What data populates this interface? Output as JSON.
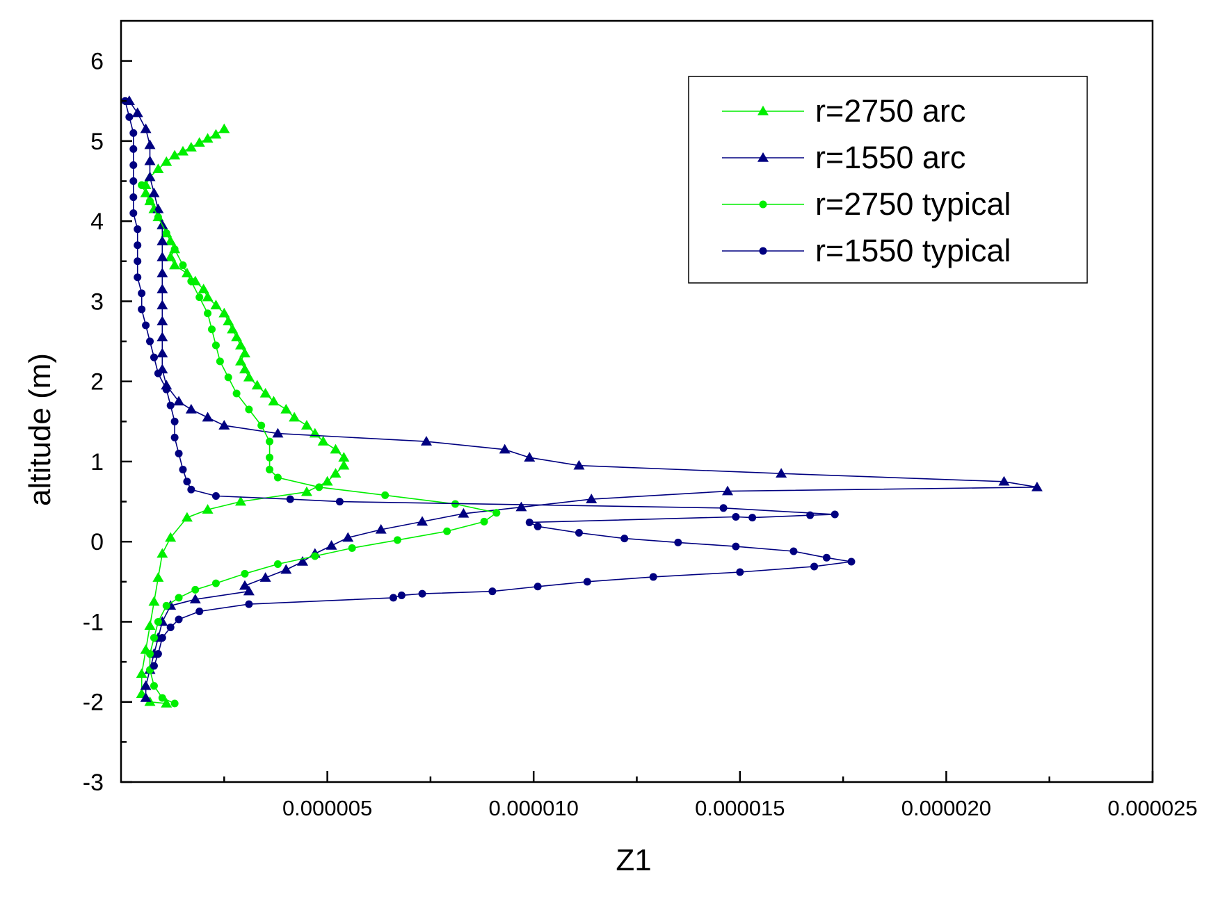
{
  "chart_data": {
    "type": "line",
    "title": "",
    "xlabel": "Z1",
    "ylabel": "altitude (m)",
    "xlim": [
      0.0,
      2.5e-05
    ],
    "ylim": [
      -3,
      6.5
    ],
    "x_ticks": [
      5e-06,
      1e-05,
      1.5e-05,
      2e-05,
      2.5e-05
    ],
    "x_tick_labels": [
      "0.000005",
      "0.000010",
      "0.000015",
      "0.000020",
      "0.000025"
    ],
    "y_ticks": [
      -3,
      -2,
      -1,
      0,
      1,
      2,
      3,
      4,
      5,
      6
    ],
    "y_tick_labels": [
      "-3",
      "-2",
      "-1",
      "0",
      "1",
      "2",
      "3",
      "4",
      "5",
      "6"
    ],
    "grid": false,
    "legend_position": "top-right",
    "series": [
      {
        "name": "r=2750 arc",
        "color": "#00ee00",
        "marker": "triangle",
        "points": [
          [
            2.5e-06,
            5.15
          ],
          [
            2.3e-06,
            5.08
          ],
          [
            2.1e-06,
            5.03
          ],
          [
            1.9e-06,
            4.98
          ],
          [
            1.7e-06,
            4.92
          ],
          [
            1.5e-06,
            4.87
          ],
          [
            1.3e-06,
            4.82
          ],
          [
            1.1e-06,
            4.74
          ],
          [
            9e-07,
            4.65
          ],
          [
            7e-07,
            4.55
          ],
          [
            6e-07,
            4.45
          ],
          [
            6e-07,
            4.35
          ],
          [
            7e-07,
            4.25
          ],
          [
            8e-07,
            4.15
          ],
          [
            9e-07,
            4.05
          ],
          [
            1e-06,
            3.95
          ],
          [
            1.1e-06,
            3.85
          ],
          [
            1.2e-06,
            3.75
          ],
          [
            1.3e-06,
            3.65
          ],
          [
            1.2e-06,
            3.55
          ],
          [
            1.3e-06,
            3.45
          ],
          [
            1.6e-06,
            3.35
          ],
          [
            1.8e-06,
            3.25
          ],
          [
            2e-06,
            3.15
          ],
          [
            2.1e-06,
            3.05
          ],
          [
            2.3e-06,
            2.95
          ],
          [
            2.5e-06,
            2.85
          ],
          [
            2.6e-06,
            2.75
          ],
          [
            2.7e-06,
            2.65
          ],
          [
            2.8e-06,
            2.55
          ],
          [
            2.9e-06,
            2.45
          ],
          [
            3e-06,
            2.35
          ],
          [
            2.9e-06,
            2.25
          ],
          [
            3e-06,
            2.15
          ],
          [
            3.1e-06,
            2.05
          ],
          [
            3.3e-06,
            1.95
          ],
          [
            3.5e-06,
            1.85
          ],
          [
            3.7e-06,
            1.75
          ],
          [
            4e-06,
            1.65
          ],
          [
            4.2e-06,
            1.55
          ],
          [
            4.5e-06,
            1.45
          ],
          [
            4.7e-06,
            1.35
          ],
          [
            4.9e-06,
            1.25
          ],
          [
            5.2e-06,
            1.15
          ],
          [
            5.4e-06,
            1.05
          ],
          [
            5.4e-06,
            0.95
          ],
          [
            5.2e-06,
            0.85
          ],
          [
            5e-06,
            0.75
          ],
          [
            4.5e-06,
            0.62
          ],
          [
            2.9e-06,
            0.5
          ],
          [
            2.1e-06,
            0.4
          ],
          [
            1.6e-06,
            0.3
          ],
          [
            1.2e-06,
            0.05
          ],
          [
            1e-06,
            -0.15
          ],
          [
            9e-07,
            -0.45
          ],
          [
            8e-07,
            -0.75
          ],
          [
            7e-07,
            -1.05
          ],
          [
            6e-07,
            -1.35
          ],
          [
            5e-07,
            -1.65
          ],
          [
            5e-07,
            -1.9
          ],
          [
            7e-07,
            -2.0
          ],
          [
            1.1e-06,
            -2.02
          ]
        ]
      },
      {
        "name": "r=1550 arc",
        "color": "#000080",
        "marker": "triangle",
        "points": [
          [
            2e-07,
            5.5
          ],
          [
            4e-07,
            5.35
          ],
          [
            6e-07,
            5.15
          ],
          [
            7e-07,
            4.95
          ],
          [
            7e-07,
            4.75
          ],
          [
            7e-07,
            4.55
          ],
          [
            8e-07,
            4.35
          ],
          [
            9e-07,
            4.15
          ],
          [
            1e-06,
            3.95
          ],
          [
            1e-06,
            3.75
          ],
          [
            1e-06,
            3.55
          ],
          [
            1e-06,
            3.35
          ],
          [
            1e-06,
            3.15
          ],
          [
            1e-06,
            2.95
          ],
          [
            1e-06,
            2.75
          ],
          [
            1e-06,
            2.55
          ],
          [
            1e-06,
            2.35
          ],
          [
            1e-06,
            2.15
          ],
          [
            1.1e-06,
            1.95
          ],
          [
            1.4e-06,
            1.75
          ],
          [
            1.7e-06,
            1.65
          ],
          [
            2.1e-06,
            1.55
          ],
          [
            2.5e-06,
            1.45
          ],
          [
            3.8e-06,
            1.35
          ],
          [
            7.4e-06,
            1.25
          ],
          [
            9.3e-06,
            1.15
          ],
          [
            9.9e-06,
            1.05
          ],
          [
            1.11e-05,
            0.95
          ],
          [
            1.6e-05,
            0.85
          ],
          [
            2.14e-05,
            0.75
          ],
          [
            2.22e-05,
            0.68
          ],
          [
            1.47e-05,
            0.63
          ],
          [
            1.14e-05,
            0.53
          ],
          [
            9.7e-06,
            0.43
          ],
          [
            8.3e-06,
            0.35
          ],
          [
            7.3e-06,
            0.25
          ],
          [
            6.3e-06,
            0.15
          ],
          [
            5.5e-06,
            0.05
          ],
          [
            5.1e-06,
            -0.05
          ],
          [
            4.7e-06,
            -0.15
          ],
          [
            4.4e-06,
            -0.25
          ],
          [
            4e-06,
            -0.35
          ],
          [
            3.5e-06,
            -0.45
          ],
          [
            3e-06,
            -0.55
          ],
          [
            3.1e-06,
            -0.62
          ],
          [
            1.8e-06,
            -0.72
          ],
          [
            1.2e-06,
            -0.8
          ],
          [
            1e-06,
            -1.0
          ],
          [
            9e-07,
            -1.2
          ],
          [
            8e-07,
            -1.4
          ],
          [
            7e-07,
            -1.6
          ],
          [
            6e-07,
            -1.8
          ],
          [
            6e-07,
            -1.95
          ]
        ]
      },
      {
        "name": "r=2750 typical",
        "color": "#00ee00",
        "marker": "circle",
        "points": [
          [
            5e-07,
            4.45
          ],
          [
            7e-07,
            4.25
          ],
          [
            9e-07,
            4.05
          ],
          [
            1.1e-06,
            3.85
          ],
          [
            1.3e-06,
            3.65
          ],
          [
            1.5e-06,
            3.45
          ],
          [
            1.7e-06,
            3.25
          ],
          [
            1.9e-06,
            3.05
          ],
          [
            2.1e-06,
            2.85
          ],
          [
            2.2e-06,
            2.65
          ],
          [
            2.3e-06,
            2.45
          ],
          [
            2.4e-06,
            2.25
          ],
          [
            2.6e-06,
            2.05
          ],
          [
            2.8e-06,
            1.85
          ],
          [
            3.1e-06,
            1.65
          ],
          [
            3.4e-06,
            1.45
          ],
          [
            3.6e-06,
            1.25
          ],
          [
            3.6e-06,
            1.05
          ],
          [
            3.6e-06,
            0.9
          ],
          [
            3.8e-06,
            0.8
          ],
          [
            4.8e-06,
            0.68
          ],
          [
            6.4e-06,
            0.58
          ],
          [
            8.1e-06,
            0.47
          ],
          [
            9.1e-06,
            0.36
          ],
          [
            8.8e-06,
            0.25
          ],
          [
            7.9e-06,
            0.13
          ],
          [
            6.7e-06,
            0.02
          ],
          [
            5.6e-06,
            -0.08
          ],
          [
            4.7e-06,
            -0.18
          ],
          [
            3.8e-06,
            -0.28
          ],
          [
            3e-06,
            -0.4
          ],
          [
            2.3e-06,
            -0.52
          ],
          [
            1.8e-06,
            -0.6
          ],
          [
            1.4e-06,
            -0.7
          ],
          [
            1.1e-06,
            -0.8
          ],
          [
            9e-07,
            -1.0
          ],
          [
            8e-07,
            -1.2
          ],
          [
            7e-07,
            -1.4
          ],
          [
            7e-07,
            -1.6
          ],
          [
            8e-07,
            -1.8
          ],
          [
            1e-06,
            -1.95
          ],
          [
            1.3e-06,
            -2.02
          ]
        ]
      },
      {
        "name": "r=1550 typical",
        "color": "#000080",
        "marker": "circle",
        "points": [
          [
            1e-07,
            5.5
          ],
          [
            2e-07,
            5.3
          ],
          [
            3e-07,
            5.1
          ],
          [
            3e-07,
            4.9
          ],
          [
            3e-07,
            4.7
          ],
          [
            3e-07,
            4.5
          ],
          [
            3e-07,
            4.3
          ],
          [
            3e-07,
            4.1
          ],
          [
            4e-07,
            3.9
          ],
          [
            4e-07,
            3.7
          ],
          [
            4e-07,
            3.5
          ],
          [
            4e-07,
            3.3
          ],
          [
            5e-07,
            3.1
          ],
          [
            5e-07,
            2.9
          ],
          [
            6e-07,
            2.7
          ],
          [
            7e-07,
            2.5
          ],
          [
            8e-07,
            2.3
          ],
          [
            9e-07,
            2.1
          ],
          [
            1.1e-06,
            1.9
          ],
          [
            1.2e-06,
            1.7
          ],
          [
            1.3e-06,
            1.5
          ],
          [
            1.3e-06,
            1.3
          ],
          [
            1.4e-06,
            1.1
          ],
          [
            1.5e-06,
            0.9
          ],
          [
            1.6e-06,
            0.75
          ],
          [
            1.7e-06,
            0.65
          ],
          [
            2.3e-06,
            0.57
          ],
          [
            4.1e-06,
            0.53
          ],
          [
            5.3e-06,
            0.5
          ],
          [
            1.46e-05,
            0.42
          ],
          [
            1.73e-05,
            0.34
          ],
          [
            1.67e-05,
            0.33
          ],
          [
            1.53e-05,
            0.3
          ],
          [
            1.49e-05,
            0.31
          ],
          [
            9.9e-06,
            0.24
          ],
          [
            1.01e-05,
            0.19
          ],
          [
            1.11e-05,
            0.11
          ],
          [
            1.22e-05,
            0.04
          ],
          [
            1.35e-05,
            -0.01
          ],
          [
            1.49e-05,
            -0.06
          ],
          [
            1.63e-05,
            -0.12
          ],
          [
            1.71e-05,
            -0.2
          ],
          [
            1.77e-05,
            -0.25
          ],
          [
            1.68e-05,
            -0.31
          ],
          [
            1.5e-05,
            -0.38
          ],
          [
            1.29e-05,
            -0.44
          ],
          [
            1.13e-05,
            -0.5
          ],
          [
            1.01e-05,
            -0.56
          ],
          [
            9e-06,
            -0.62
          ],
          [
            7.3e-06,
            -0.65
          ],
          [
            6.8e-06,
            -0.67
          ],
          [
            6.6e-06,
            -0.7
          ],
          [
            3.1e-06,
            -0.78
          ],
          [
            1.9e-06,
            -0.87
          ],
          [
            1.4e-06,
            -0.97
          ],
          [
            1.2e-06,
            -1.07
          ],
          [
            1e-06,
            -1.2
          ],
          [
            9e-07,
            -1.4
          ],
          [
            8e-07,
            -1.55
          ]
        ]
      }
    ]
  }
}
